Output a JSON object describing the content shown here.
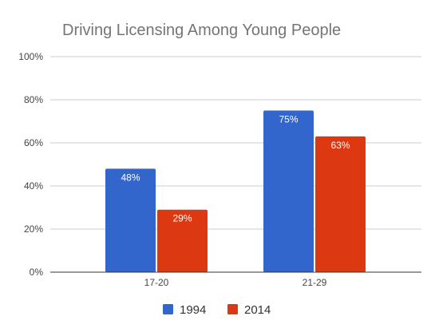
{
  "chart_data": {
    "type": "bar",
    "title": "Driving Licensing Among Young People",
    "xlabel": "",
    "ylabel": "",
    "categories": [
      "17-20",
      "21-29"
    ],
    "series": [
      {
        "name": "1994",
        "values": [
          48,
          75
        ],
        "labels": [
          "48%",
          "75%"
        ],
        "color": "#3366cc"
      },
      {
        "name": "2014",
        "values": [
          29,
          63
        ],
        "labels": [
          "29%",
          "63%"
        ],
        "color": "#dc3912"
      }
    ],
    "ylim": [
      0,
      100
    ],
    "yticks": [
      "0%",
      "20%",
      "40%",
      "60%",
      "80%",
      "100%"
    ],
    "grid": true,
    "legend_position": "bottom"
  },
  "colors": {
    "grid": "#cccccc",
    "axis": "#333333"
  }
}
